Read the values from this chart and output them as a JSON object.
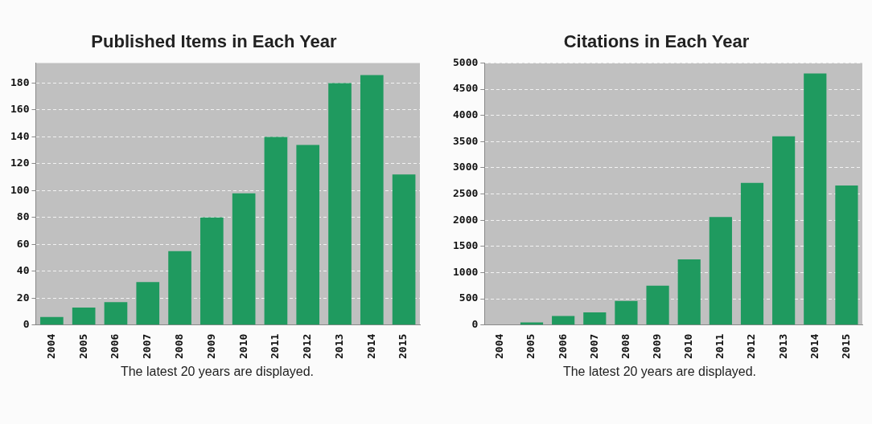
{
  "chart_data": [
    {
      "type": "bar",
      "title": "Published Items in Each Year",
      "categories": [
        "2004",
        "2005",
        "2006",
        "2007",
        "2008",
        "2009",
        "2010",
        "2011",
        "2012",
        "2013",
        "2014",
        "2015"
      ],
      "values": [
        6,
        13,
        17,
        32,
        55,
        80,
        98,
        140,
        134,
        180,
        186,
        112
      ],
      "color": "#1f9a5f",
      "ylim": [
        0,
        195
      ],
      "yticks": [
        0,
        20,
        40,
        60,
        80,
        100,
        120,
        140,
        160,
        180
      ],
      "grid": "y",
      "annotations": [
        "The latest 20 years are displayed."
      ]
    },
    {
      "type": "bar",
      "title": "Citations in Each Year",
      "categories": [
        "2004",
        "2005",
        "2006",
        "2007",
        "2008",
        "2009",
        "2010",
        "2011",
        "2012",
        "2013",
        "2014",
        "2015"
      ],
      "values": [
        0,
        50,
        170,
        240,
        460,
        750,
        1250,
        2060,
        2710,
        3600,
        4800,
        2660
      ],
      "color": "#1f9a5f",
      "ylim": [
        0,
        5000
      ],
      "yticks": [
        0,
        500,
        1000,
        1500,
        2000,
        2500,
        3000,
        3500,
        4000,
        4500,
        5000
      ],
      "grid": "y",
      "annotations": [
        "The latest 20 years are displayed."
      ]
    }
  ]
}
